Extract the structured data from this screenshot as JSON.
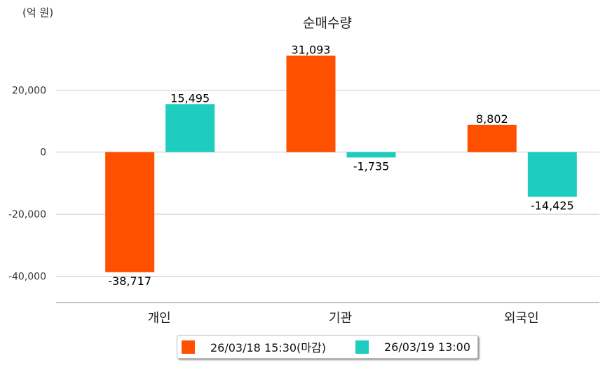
{
  "chart_data": {
    "type": "bar",
    "title": "순매수량",
    "unit_label": "(억 원)",
    "categories": [
      "개인",
      "기관",
      "외국인"
    ],
    "series": [
      {
        "name": "26/03/18 15:30(마감)",
        "color": "#ff5000",
        "values": [
          -38717,
          31093,
          8802
        ],
        "labels": [
          "-38,717",
          "31,093",
          "8,802"
        ]
      },
      {
        "name": "26/03/19 13:00",
        "color": "#1ecdbd",
        "values": [
          15495,
          -1735,
          -14425
        ],
        "labels": [
          "15,495",
          "-1,735",
          "-14,425"
        ]
      }
    ],
    "yticks": [
      20000,
      0,
      -20000,
      -40000
    ],
    "ytick_labels": [
      "20,000",
      "0",
      "-20,000",
      "-40,000"
    ],
    "ylim": [
      -48500,
      40000
    ],
    "grid": true,
    "legend_position": "bottom-center"
  }
}
